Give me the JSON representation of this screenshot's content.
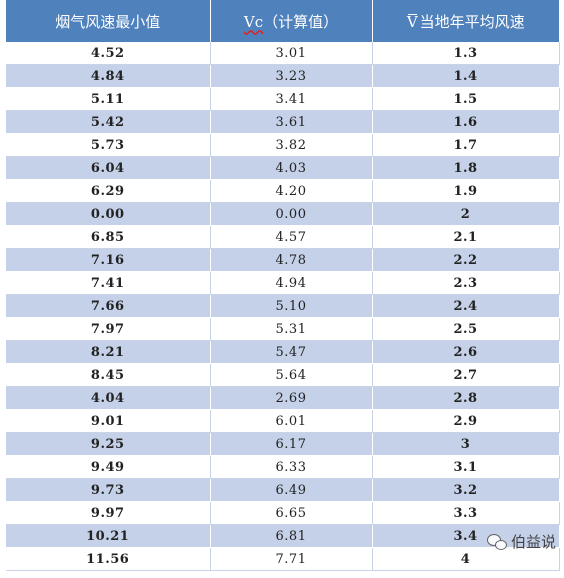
{
  "table": {
    "headers": {
      "col1": "烟气风速最小值",
      "col2_symbol": "Vc",
      "col2_label": "（计算值）",
      "col3_symbol": "V",
      "col3_label": "当地年平均风速"
    },
    "rows": [
      [
        "4.52",
        "3.01",
        "1.3"
      ],
      [
        "4.84",
        "3.23",
        "1.4"
      ],
      [
        "5.11",
        "3.41",
        "1.5"
      ],
      [
        "5.42",
        "3.61",
        "1.6"
      ],
      [
        "5.73",
        "3.82",
        "1.7"
      ],
      [
        "6.04",
        "4.03",
        "1.8"
      ],
      [
        "6.29",
        "4.20",
        "1.9"
      ],
      [
        "0.00",
        "0.00",
        "2"
      ],
      [
        "6.85",
        "4.57",
        "2.1"
      ],
      [
        "7.16",
        "4.78",
        "2.2"
      ],
      [
        "7.41",
        "4.94",
        "2.3"
      ],
      [
        "7.66",
        "5.10",
        "2.4"
      ],
      [
        "7.97",
        "5.31",
        "2.5"
      ],
      [
        "8.21",
        "5.47",
        "2.6"
      ],
      [
        "8.45",
        "5.64",
        "2.7"
      ],
      [
        "4.04",
        "2.69",
        "2.8"
      ],
      [
        "9.01",
        "6.01",
        "2.9"
      ],
      [
        "9.25",
        "6.17",
        "3"
      ],
      [
        "9.49",
        "6.33",
        "3.1"
      ],
      [
        "9.73",
        "6.49",
        "3.2"
      ],
      [
        "9.97",
        "6.65",
        "3.3"
      ],
      [
        "10.21",
        "6.81",
        "3.4"
      ],
      [
        "11.56",
        "7.71",
        "4"
      ]
    ]
  },
  "watermark": {
    "text": "伯益说",
    "icon": "wechat-icon"
  },
  "colors": {
    "header_bg": "#4f81bd",
    "band_bg": "#c5d1e8",
    "spellcheck_underline": "#e02020"
  }
}
